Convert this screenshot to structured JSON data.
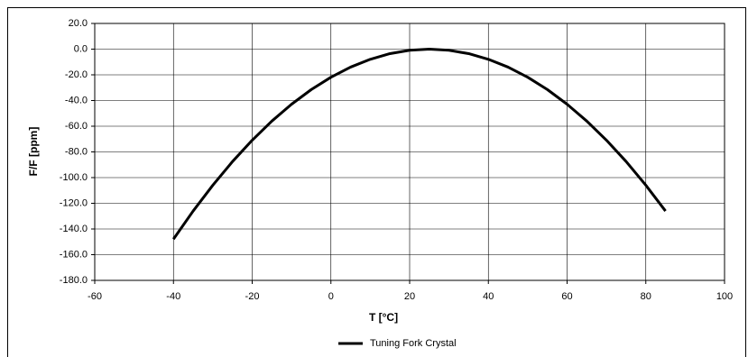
{
  "chart_data": {
    "type": "line",
    "xlabel": "T [°C]",
    "ylabel": "F/F [ppm]",
    "x": [
      -40,
      -35,
      -30,
      -25,
      -20,
      -15,
      -10,
      -5,
      0,
      5,
      10,
      15,
      20,
      25,
      30,
      35,
      40,
      45,
      50,
      55,
      60,
      65,
      70,
      75,
      80,
      85
    ],
    "series": [
      {
        "name": "Tuning Fork Crystal",
        "color": "#000000",
        "values": [
          -147.9,
          -126.0,
          -105.9,
          -87.5,
          -70.9,
          -56.0,
          -42.9,
          -31.5,
          -21.9,
          -14.0,
          -7.9,
          -3.5,
          -0.9,
          0,
          -0.9,
          -3.5,
          -7.9,
          -14.0,
          -21.9,
          -31.5,
          -42.9,
          -56.0,
          -70.9,
          -87.5,
          -105.9,
          -126.0
        ]
      }
    ],
    "xlim": [
      -60,
      100
    ],
    "xticks": [
      -60,
      -40,
      -20,
      0,
      20,
      40,
      60,
      80,
      100
    ],
    "ylim": [
      -180,
      20
    ],
    "yticks": [
      {
        "value": 20,
        "label": "20.0"
      },
      {
        "value": 0,
        "label": "0.0"
      },
      {
        "value": -20,
        "label": "-20.0"
      },
      {
        "value": -40,
        "label": "-40.0"
      },
      {
        "value": -60,
        "label": "-60.0"
      },
      {
        "value": -80,
        "label": "-80.0"
      },
      {
        "value": -100,
        "label": "-100.0"
      },
      {
        "value": -120,
        "label": "-120.0"
      },
      {
        "value": -140,
        "label": "-140.0"
      },
      {
        "value": -160,
        "label": "-160.0"
      },
      {
        "value": -180,
        "label": "-180.0"
      }
    ],
    "grid": true,
    "legend": "bottom"
  }
}
